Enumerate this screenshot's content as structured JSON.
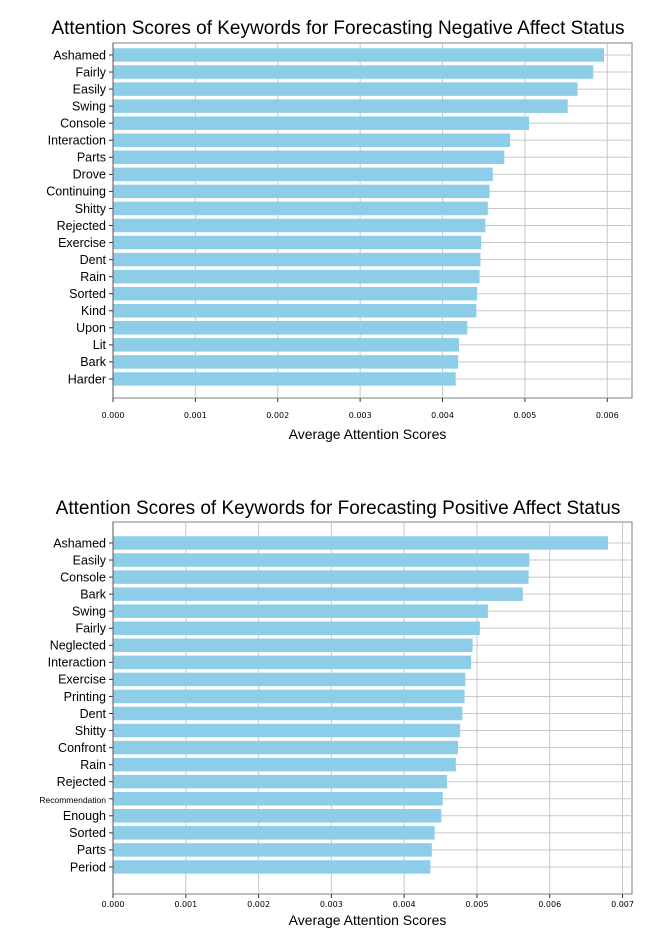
{
  "chart_data": [
    {
      "type": "bar",
      "orientation": "horizontal",
      "title": "Attention Scores of Keywords for Forecasting Negative Affect Status",
      "xlabel": "Average Attention Scores",
      "ylabel": "",
      "xlim": [
        0,
        0.0063
      ],
      "xticks": [
        "0.000",
        "0.001",
        "0.002",
        "0.003",
        "0.004",
        "0.005",
        "0.006"
      ],
      "grid": true,
      "bar_color": "#8ecde8",
      "categories": [
        "Ashamed",
        "Fairly",
        "Easily",
        "Swing",
        "Console",
        "Interaction",
        "Parts",
        "Drove",
        "Continuing",
        "Shitty",
        "Rejected",
        "Exercise",
        "Dent",
        "Rain",
        "Sorted",
        "Kind",
        "Upon",
        "Lit",
        "Bark",
        "Harder"
      ],
      "values": [
        0.00596,
        0.00583,
        0.00564,
        0.00552,
        0.00505,
        0.00482,
        0.00475,
        0.00461,
        0.00457,
        0.00455,
        0.00452,
        0.00447,
        0.00446,
        0.00445,
        0.00442,
        0.00441,
        0.0043,
        0.0042,
        0.00419,
        0.00416
      ]
    },
    {
      "type": "bar",
      "orientation": "horizontal",
      "title": "Attention Scores of Keywords for Forecasting Positive Affect Status",
      "xlabel": "Average Attention Scores",
      "ylabel": "",
      "xlim": [
        0,
        0.00713
      ],
      "xticks": [
        "0.000",
        "0.001",
        "0.002",
        "0.003",
        "0.004",
        "0.005",
        "0.006",
        "0.007"
      ],
      "grid": true,
      "bar_color": "#8ecde8",
      "categories": [
        "Ashamed",
        "Easily",
        "Console",
        "Bark",
        "Swing",
        "Fairly",
        "Neglected",
        "Interaction",
        "Exercise",
        "Printing",
        "Dent",
        "Shitty",
        "Confront",
        "Rain",
        "Rejected",
        "Recommendation",
        "Enough",
        "Sorted",
        "Parts",
        "Period"
      ],
      "values": [
        0.0068,
        0.00572,
        0.00571,
        0.00563,
        0.00515,
        0.00504,
        0.00494,
        0.00492,
        0.00484,
        0.00483,
        0.0048,
        0.00477,
        0.00474,
        0.00471,
        0.00459,
        0.00453,
        0.00451,
        0.00442,
        0.00438,
        0.00436
      ]
    }
  ]
}
